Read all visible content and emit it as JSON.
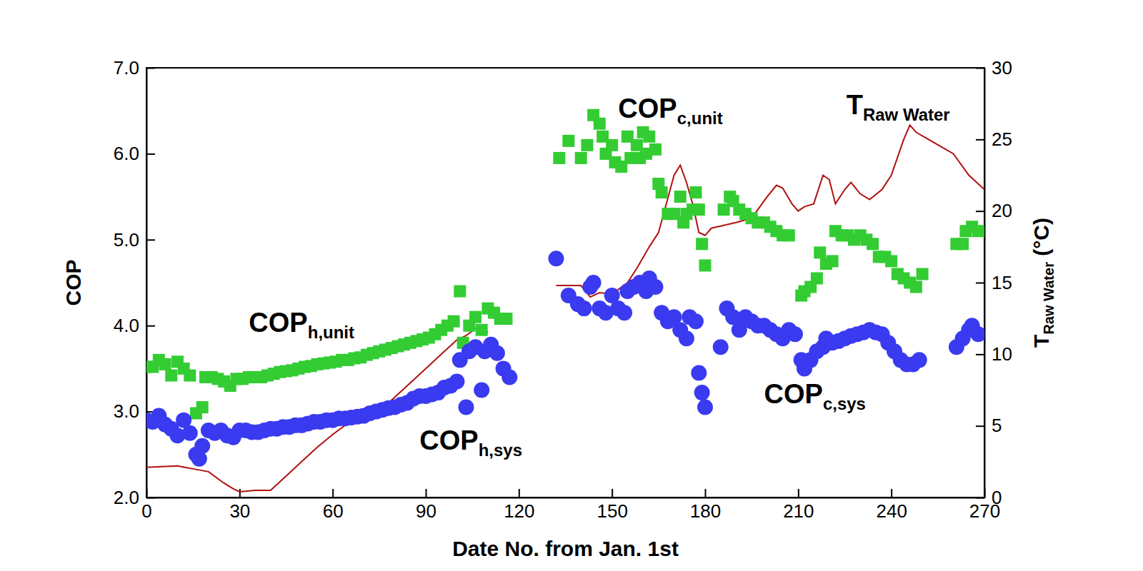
{
  "chart_data": {
    "type": "scatter",
    "x_label": "Date No. from Jan. 1st",
    "y_label": "COP",
    "y2_label": {
      "text": "T",
      "subscript": "Raw Water",
      "suffix": " (°C)"
    },
    "xlim": [
      0,
      270
    ],
    "xticks": [
      0,
      30,
      60,
      90,
      120,
      150,
      180,
      210,
      240,
      270
    ],
    "ylim": [
      2,
      7
    ],
    "yticks": [
      {
        "value": 2,
        "label": "2.0"
      },
      {
        "value": 3,
        "label": "3.0"
      },
      {
        "value": 4,
        "label": "4.0"
      },
      {
        "value": 5,
        "label": "5.0"
      },
      {
        "value": 6,
        "label": "6.0"
      },
      {
        "value": 7,
        "label": "7.0"
      }
    ],
    "y2lim": [
      0,
      30
    ],
    "y2ticks": [
      0,
      5,
      10,
      15,
      20,
      25,
      30
    ],
    "grid": false,
    "annotations": [
      {
        "text": "COP",
        "subscript": "h,unit",
        "x": 33,
        "y": 3.93
      },
      {
        "text": "COP",
        "subscript": "h,sys",
        "x": 88,
        "y": 2.56
      },
      {
        "text": "COP",
        "subscript": "c,unit",
        "x": 152,
        "y": 6.42
      },
      {
        "text": "COP",
        "subscript": "c,sys",
        "x": 199,
        "y": 3.1
      },
      {
        "text": "T",
        "subscript": "Raw Water",
        "x": 225.5,
        "y": 6.46
      }
    ],
    "series": [
      {
        "type": "scatter",
        "marker": "square",
        "color": "#33cc33",
        "x": [
          0,
          2,
          4,
          6,
          8,
          10,
          12,
          14,
          16,
          18,
          19,
          21,
          23,
          25,
          27,
          29,
          31,
          33,
          35,
          37,
          39,
          41,
          43,
          45,
          47,
          49,
          51,
          53,
          55,
          57,
          59,
          61,
          63,
          65,
          67,
          69,
          71,
          73,
          75,
          77,
          79,
          81,
          83,
          85,
          87,
          89,
          91,
          93,
          95,
          97,
          99,
          101,
          102,
          104,
          106,
          108,
          110,
          112,
          114,
          116
        ],
        "values": [
          3.52,
          3.52,
          3.6,
          3.55,
          3.42,
          3.58,
          3.5,
          3.42,
          2.98,
          3.05,
          3.4,
          3.4,
          3.38,
          3.35,
          3.3,
          3.38,
          3.38,
          3.4,
          3.4,
          3.4,
          3.42,
          3.44,
          3.46,
          3.47,
          3.48,
          3.5,
          3.52,
          3.53,
          3.55,
          3.56,
          3.57,
          3.58,
          3.6,
          3.6,
          3.62,
          3.63,
          3.66,
          3.68,
          3.7,
          3.72,
          3.74,
          3.76,
          3.78,
          3.8,
          3.82,
          3.84,
          3.86,
          3.9,
          3.95,
          4.0,
          4.05,
          4.4,
          3.8,
          4.0,
          4.1,
          3.95,
          4.2,
          4.15,
          4.08,
          4.08
        ]
      },
      {
        "type": "scatter",
        "marker": "circle",
        "color": "#3a3af0",
        "x": [
          0,
          2,
          4,
          6,
          8,
          10,
          12,
          14,
          16,
          17,
          18,
          20,
          22,
          24,
          26,
          28,
          30,
          32,
          34,
          36,
          38,
          40,
          42,
          44,
          46,
          48,
          50,
          52,
          54,
          56,
          58,
          60,
          62,
          64,
          66,
          68,
          70,
          72,
          74,
          76,
          78,
          80,
          82,
          84,
          86,
          88,
          90,
          92,
          94,
          96,
          98,
          100,
          101,
          103,
          104,
          106,
          108,
          109,
          111,
          113,
          115,
          117
        ],
        "values": [
          2.9,
          2.88,
          2.95,
          2.85,
          2.8,
          2.72,
          2.9,
          2.75,
          2.5,
          2.45,
          2.6,
          2.78,
          2.75,
          2.78,
          2.72,
          2.7,
          2.78,
          2.78,
          2.76,
          2.76,
          2.78,
          2.8,
          2.8,
          2.82,
          2.82,
          2.84,
          2.84,
          2.86,
          2.88,
          2.88,
          2.9,
          2.9,
          2.92,
          2.92,
          2.93,
          2.94,
          2.95,
          2.98,
          3.0,
          3.02,
          3.04,
          3.05,
          3.08,
          3.1,
          3.15,
          3.18,
          3.18,
          3.2,
          3.22,
          3.28,
          3.3,
          3.35,
          3.6,
          3.05,
          3.7,
          3.75,
          3.25,
          3.7,
          3.78,
          3.68,
          3.5,
          3.4
        ]
      },
      {
        "type": "scatter",
        "marker": "square",
        "color": "#33cc33",
        "x": [
          133,
          136,
          140,
          142,
          144,
          146,
          147,
          148,
          150,
          151,
          153,
          155,
          156,
          158,
          159,
          160,
          161,
          162,
          164,
          165,
          166,
          168,
          170,
          172,
          173,
          174,
          176,
          177,
          178,
          179,
          180,
          186,
          188,
          189,
          191,
          193,
          195,
          197,
          199,
          201,
          203,
          205,
          207,
          211,
          212,
          214,
          216,
          217,
          219,
          221,
          222,
          224,
          226,
          228,
          230,
          232,
          234,
          236,
          238,
          240,
          242,
          244,
          246,
          248,
          250,
          261,
          263,
          264,
          266,
          268
        ],
        "values": [
          5.95,
          6.15,
          5.95,
          6.1,
          6.45,
          6.35,
          6.2,
          6.0,
          6.1,
          5.9,
          5.85,
          6.2,
          5.95,
          6.1,
          5.95,
          6.25,
          6.0,
          6.2,
          6.05,
          5.65,
          5.55,
          5.3,
          5.3,
          5.5,
          5.2,
          5.3,
          5.35,
          5.55,
          5.35,
          4.95,
          4.7,
          5.35,
          5.5,
          5.45,
          5.35,
          5.3,
          5.25,
          5.2,
          5.2,
          5.15,
          5.1,
          5.05,
          5.05,
          4.35,
          4.4,
          4.45,
          4.55,
          4.85,
          4.72,
          4.75,
          5.1,
          5.05,
          5.05,
          5.0,
          5.05,
          5.0,
          4.95,
          4.8,
          4.8,
          4.75,
          4.6,
          4.55,
          4.5,
          4.45,
          4.6,
          4.95,
          4.95,
          5.1,
          5.15,
          5.1
        ]
      },
      {
        "type": "scatter",
        "marker": "circle",
        "color": "#3a3af0",
        "x": [
          132,
          136,
          139,
          141,
          143,
          144,
          146,
          148,
          150,
          152,
          154,
          155,
          157,
          159,
          161,
          162,
          164,
          166,
          168,
          170,
          172,
          174,
          175,
          177,
          178,
          179,
          180,
          185,
          187,
          189,
          191,
          193,
          195,
          197,
          199,
          201,
          203,
          205,
          207,
          209,
          211,
          212,
          214,
          216,
          218,
          219,
          221,
          223,
          225,
          227,
          229,
          231,
          233,
          235,
          237,
          239,
          241,
          243,
          245,
          247,
          249,
          261,
          263,
          265,
          266,
          268
        ],
        "values": [
          4.78,
          4.35,
          4.25,
          4.2,
          4.45,
          4.5,
          4.2,
          4.15,
          4.35,
          4.2,
          4.15,
          4.4,
          4.45,
          4.5,
          4.4,
          4.55,
          4.45,
          4.15,
          4.05,
          4.1,
          3.95,
          3.85,
          4.1,
          4.05,
          3.45,
          3.22,
          3.05,
          3.75,
          4.2,
          4.1,
          3.95,
          4.1,
          4.05,
          4.0,
          4.0,
          3.95,
          3.9,
          3.85,
          3.95,
          3.9,
          3.6,
          3.5,
          3.6,
          3.7,
          3.75,
          3.85,
          3.8,
          3.82,
          3.85,
          3.88,
          3.9,
          3.92,
          3.95,
          3.92,
          3.9,
          3.8,
          3.7,
          3.6,
          3.55,
          3.55,
          3.6,
          3.75,
          3.85,
          3.95,
          4.0,
          3.9
        ]
      },
      {
        "type": "line",
        "axis": "y2",
        "line_style": "solid",
        "color": "#b01010",
        "x": [
          0,
          10,
          15,
          20,
          25,
          28,
          30,
          35,
          40,
          45,
          50,
          55,
          60,
          65,
          70,
          75,
          80,
          85,
          90,
          95,
          100,
          103,
          106,
          108,
          110,
          120,
          132,
          140,
          143,
          146,
          150,
          155,
          158,
          162,
          165,
          170,
          172,
          174,
          176,
          178,
          180,
          182,
          186,
          190,
          195,
          200,
          203,
          205,
          208,
          210,
          212,
          215,
          218,
          220,
          222,
          225,
          227,
          230,
          233,
          237,
          240,
          244,
          246,
          248,
          252,
          256,
          260,
          265,
          270
        ],
        "values": [
          2.1,
          2.2,
          2.0,
          1.8,
          1.0,
          0.6,
          0.4,
          0.5,
          0.5,
          1.5,
          2.5,
          3.5,
          4.4,
          5.2,
          5.5,
          6.0,
          7.0,
          8.0,
          9.0,
          10.0,
          11.0,
          11.3,
          11.8,
          12.0,
          11.5,
          null,
          14.8,
          14.8,
          14.0,
          14.3,
          14.2,
          15.0,
          16.0,
          17.5,
          18.5,
          22.5,
          23.2,
          22.0,
          20.5,
          18.5,
          18.3,
          18.8,
          19.0,
          19.2,
          19.5,
          21.0,
          21.8,
          21.6,
          20.5,
          20.0,
          20.3,
          20.5,
          22.5,
          22.2,
          20.5,
          21.5,
          22.0,
          21.2,
          20.8,
          21.5,
          22.5,
          25.0,
          26.0,
          25.5,
          25.0,
          24.5,
          24.0,
          22.5,
          21.5
        ]
      }
    ]
  }
}
